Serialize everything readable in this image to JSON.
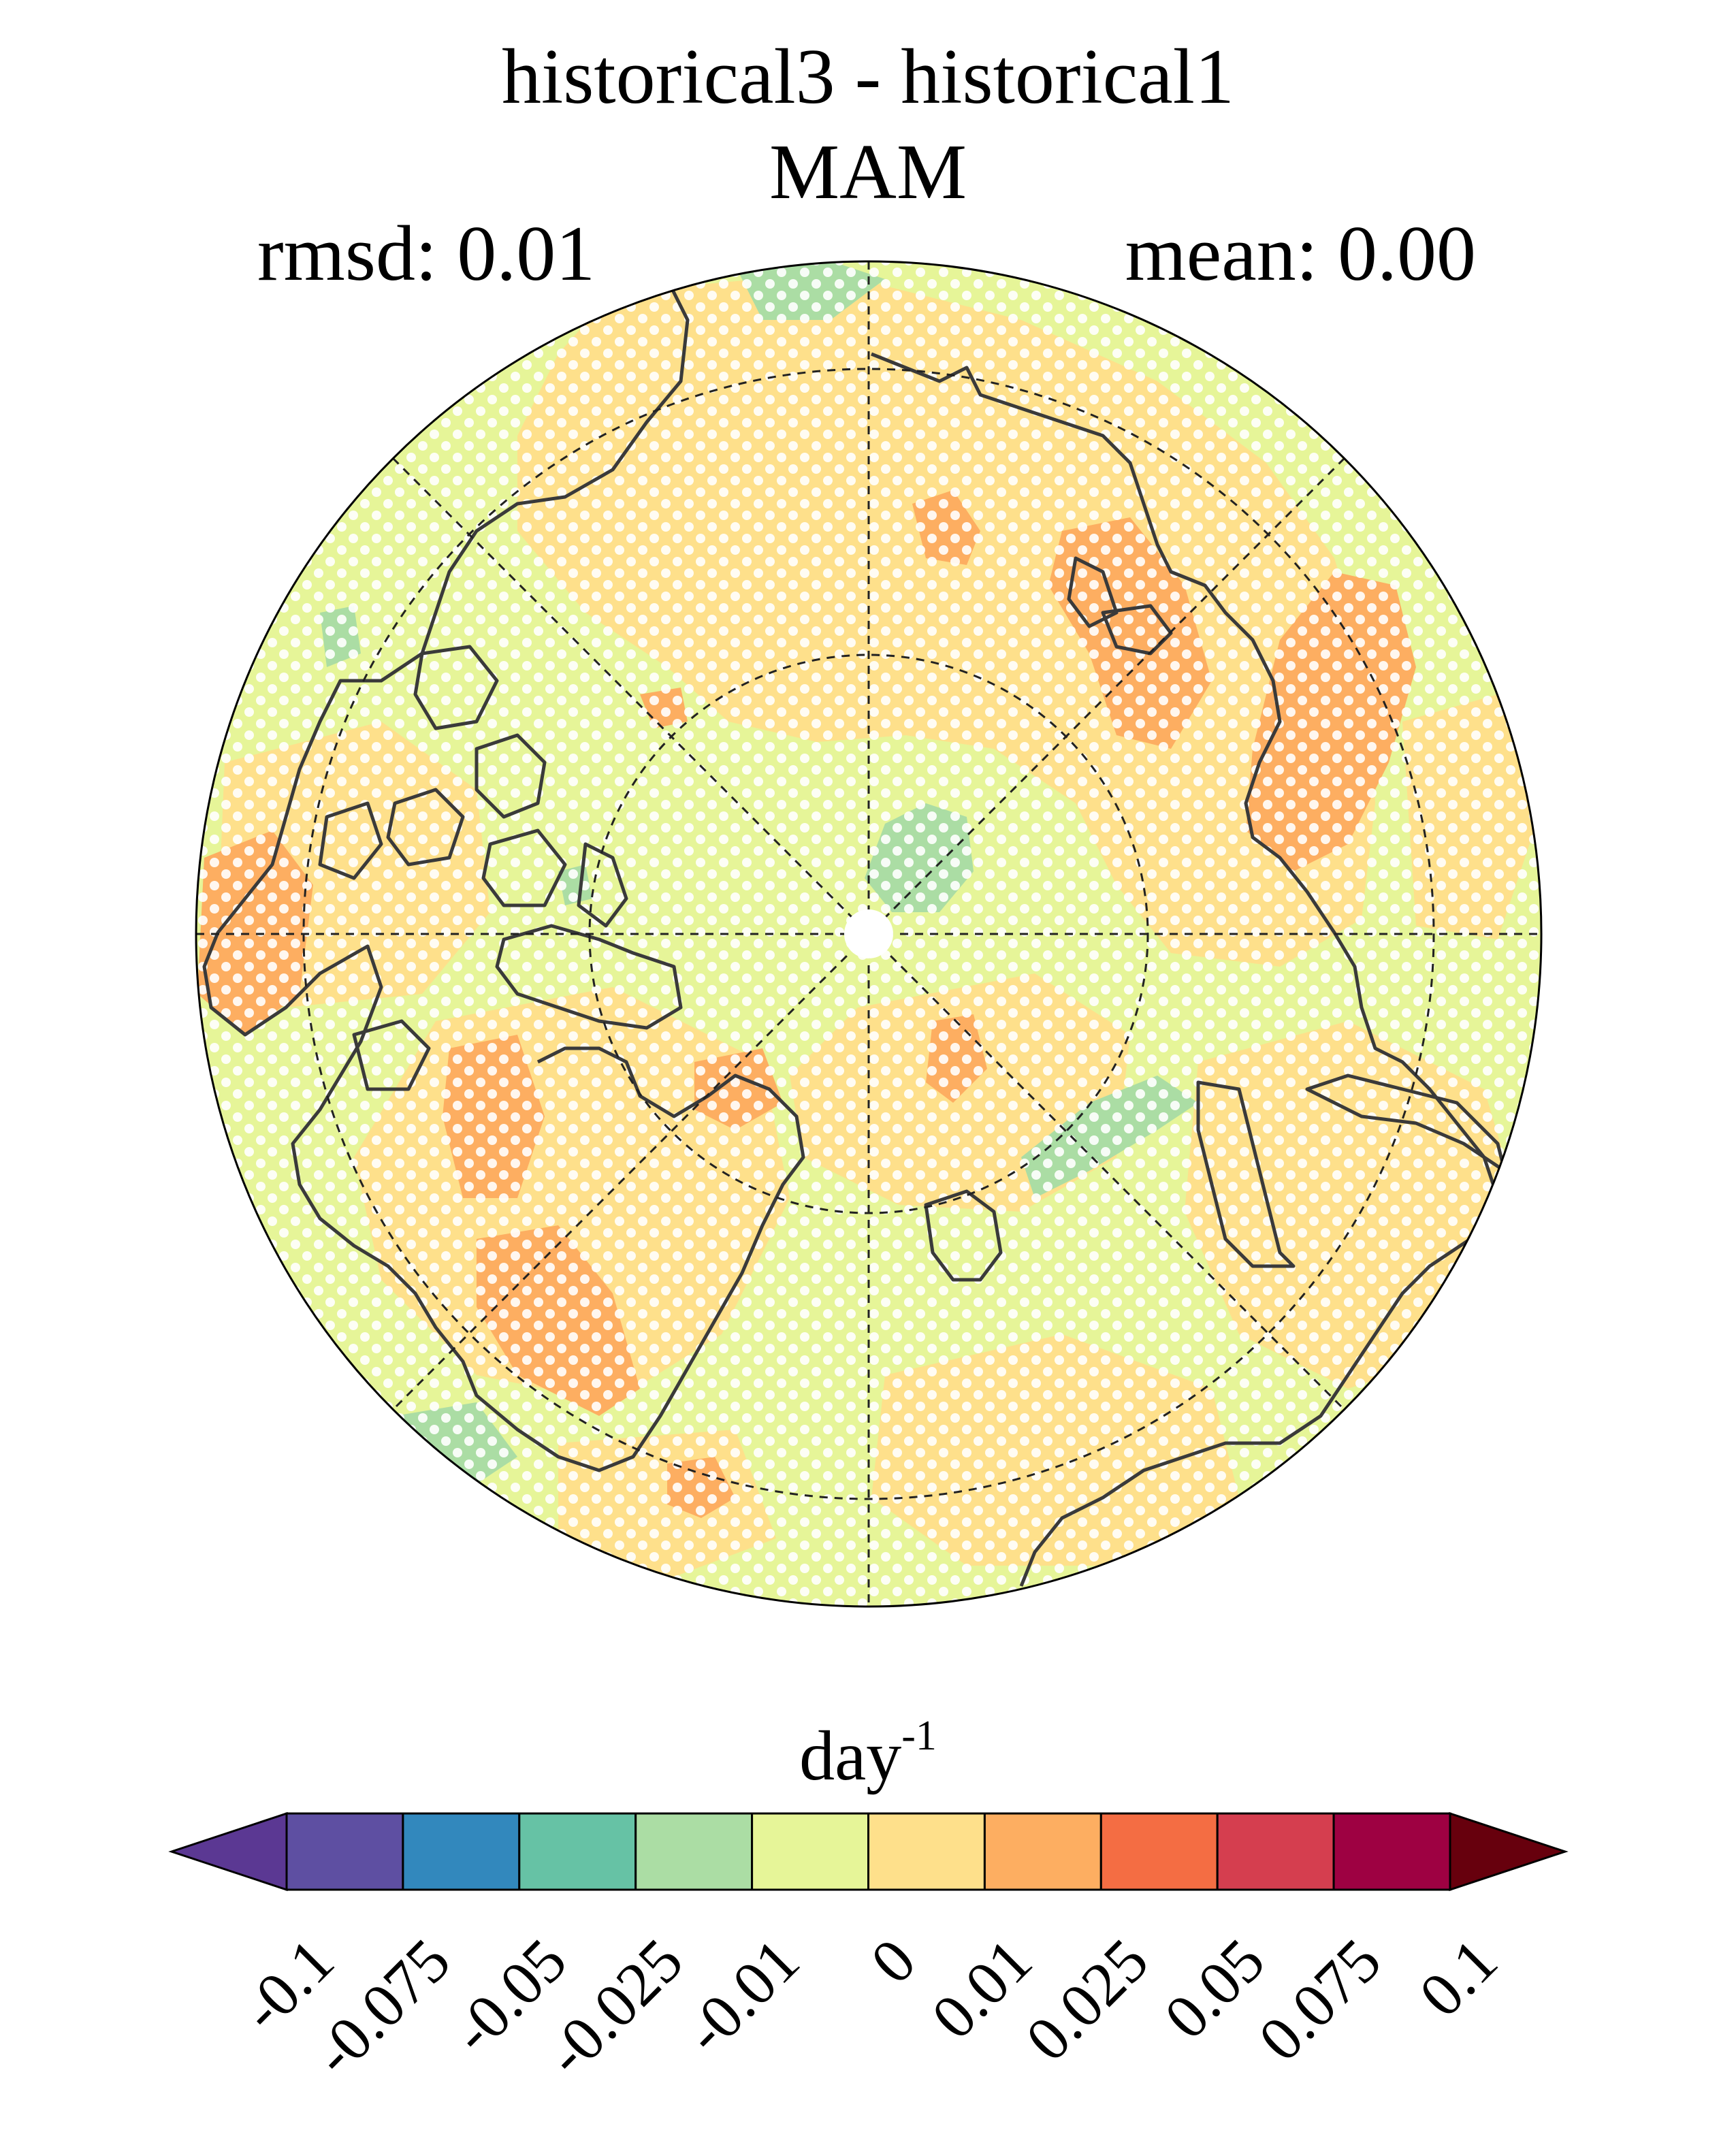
{
  "header": {
    "title_line1": "historical3 - historical1",
    "title_line2": "MAM",
    "left_label": "rmsd: 0.01",
    "right_label": "mean: 0.00"
  },
  "colorbar": {
    "units_base": "day",
    "units_exponent": "-1",
    "tick_labels": [
      "-0.1",
      "-0.075",
      "-0.05",
      "-0.025",
      "-0.01",
      "0",
      "0.01",
      "0.025",
      "0.05",
      "0.075",
      "0.1"
    ],
    "colors": [
      "#5e4fa2",
      "#3288bd",
      "#66c2a5",
      "#abdda4",
      "#e6f598",
      "#fee08b",
      "#fdae61",
      "#f46d43",
      "#d53e4f",
      "#9e0142"
    ],
    "extend_low_color": "#5b3893",
    "extend_high_color": "#67000d"
  },
  "map": {
    "projection": "north-polar-stereographic",
    "background_color": "#e6f598",
    "stippling": "white dots",
    "latitude_circles": [
      "60°N",
      "70°N",
      "80°N"
    ]
  }
}
